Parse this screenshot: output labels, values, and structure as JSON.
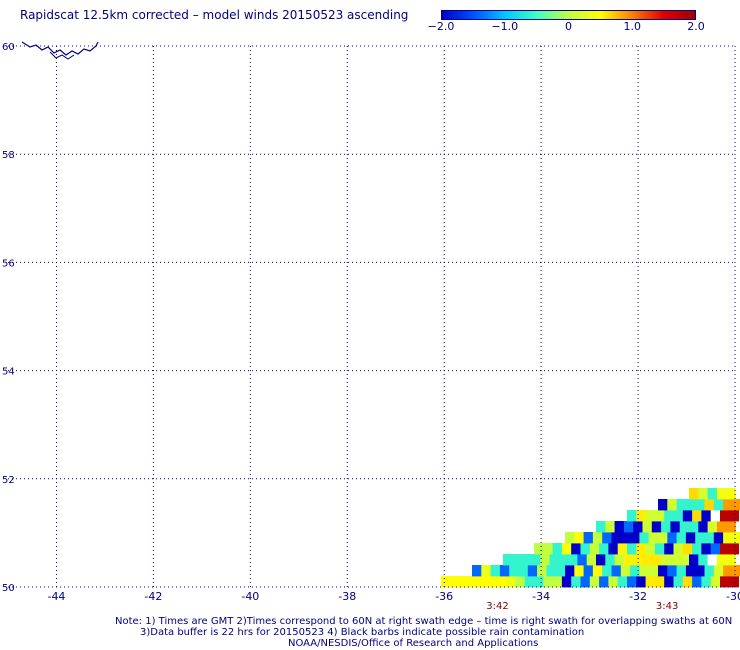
{
  "title": "Rapidscat 12.5km corrected – model winds 20150523 ascending",
  "colorbar": {
    "ticks": [
      "−2.0",
      "−1.0",
      "0",
      "1.0",
      "2.0"
    ],
    "tick_values": [
      -2.0,
      -1.0,
      0,
      1.0,
      2.0
    ],
    "range": [
      -2.0,
      2.0
    ],
    "colors": [
      "#0000c8",
      "#0050ff",
      "#00c8ff",
      "#40ffc0",
      "#c0ff40",
      "#ffff00",
      "#ff8000",
      "#e00000",
      "#a00000"
    ]
  },
  "map": {
    "lon_range": [
      -45,
      -30
    ],
    "lat_range": [
      50,
      60
    ],
    "lon_labels": [
      "-44",
      "-42",
      "-40",
      "-38",
      "-36",
      "-34",
      "-32",
      "-30"
    ],
    "lon_values": [
      -44,
      -42,
      -40,
      -38,
      -36,
      -34,
      -32,
      -30
    ],
    "lat_labels": [
      "50",
      "52",
      "54",
      "56",
      "58",
      "60"
    ],
    "lat_values": [
      50,
      52,
      54,
      56,
      58,
      60
    ],
    "grid": "dotted",
    "coastline_color": "#000080",
    "time_labels": [
      {
        "text": "3:42",
        "lon": -34.9
      },
      {
        "text": "3:43",
        "lon": -31.4
      }
    ],
    "time_label_color": "#800000"
  },
  "notes": [
    "Note: 1) Times are GMT 2)Times correspond to 60N at right swath edge – time is right swath for overlapping swaths at 60N",
    "3)Data buffer is 22 hrs for 20150523 4) Black barbs indicate possible rain contamination",
    "NOAA/NESDIS/Office of Research and Applications"
  ]
}
